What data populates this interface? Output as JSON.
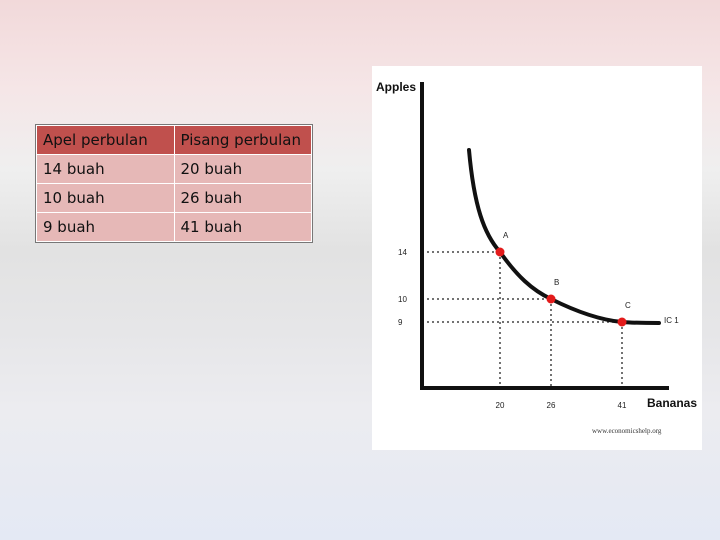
{
  "table": {
    "headers": [
      "Apel perbulan",
      "Pisang perbulan"
    ],
    "rows": [
      [
        "14 buah",
        "20 buah"
      ],
      [
        "10 buah",
        "26 buah"
      ],
      [
        "9 buah",
        "41 buah"
      ]
    ]
  },
  "chart_data": {
    "type": "line",
    "ylabel": "Apples",
    "xlabel": "Bananas",
    "curve_label": "IC 1",
    "watermark": "www.economicshelp.org",
    "x_ticks": [
      "20",
      "26",
      "41"
    ],
    "y_ticks": [
      "14",
      "10",
      "9"
    ],
    "points": [
      {
        "label": "A",
        "x": 20,
        "y": 14
      },
      {
        "label": "B",
        "x": 26,
        "y": 10
      },
      {
        "label": "C",
        "x": 41,
        "y": 9
      }
    ],
    "grid": false,
    "colors": {
      "curve": "#111111",
      "points": "#e31b1b",
      "guides": "#444444"
    }
  }
}
